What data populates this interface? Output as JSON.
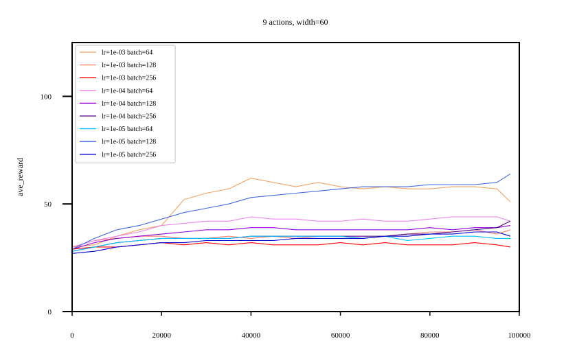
{
  "chart_data": {
    "type": "line",
    "title": "9 actions, width=60",
    "xlabel": "",
    "ylabel": "ave_reward",
    "xlim": [
      0,
      100000
    ],
    "ylim": [
      0,
      125
    ],
    "xticks": [
      0,
      20000,
      40000,
      60000,
      80000,
      100000
    ],
    "xtick_labels": [
      "0",
      "20000",
      "40000",
      "60000",
      "80000",
      "100000"
    ],
    "yticks": [
      0,
      50,
      100
    ],
    "ytick_labels": [
      "0",
      "50",
      "100"
    ],
    "grid": false,
    "legend_position": "top-left",
    "x": [
      0,
      5000,
      10000,
      15000,
      20000,
      25000,
      30000,
      35000,
      40000,
      45000,
      50000,
      55000,
      60000,
      65000,
      70000,
      75000,
      80000,
      85000,
      90000,
      95000,
      98000
    ],
    "series": [
      {
        "name": "lr=1e-03 batch=64",
        "color": "#f4a460",
        "values": [
          30,
          31,
          35,
          38,
          40,
          52,
          55,
          57,
          62,
          60,
          58,
          60,
          58,
          57,
          58,
          57,
          57,
          58,
          58,
          57,
          51
        ]
      },
      {
        "name": "lr=1e-03 batch=128",
        "color": "#fa8072",
        "values": [
          30,
          33,
          34,
          35,
          35,
          34,
          34,
          35,
          34,
          35,
          34,
          35,
          35,
          34,
          35,
          36,
          37,
          37,
          38,
          36,
          38
        ]
      },
      {
        "name": "lr=1e-03 batch=256",
        "color": "#ff0000",
        "values": [
          29,
          30,
          30,
          31,
          32,
          31,
          32,
          31,
          32,
          31,
          31,
          31,
          32,
          31,
          32,
          31,
          31,
          31,
          32,
          31,
          30
        ]
      },
      {
        "name": "lr=1e-04 batch=64",
        "color": "#ee82ee",
        "values": [
          30,
          33,
          35,
          37,
          40,
          41,
          42,
          42,
          44,
          43,
          43,
          42,
          42,
          43,
          42,
          42,
          43,
          44,
          44,
          44,
          42
        ]
      },
      {
        "name": "lr=1e-04 batch=128",
        "color": "#9400d3",
        "values": [
          29,
          32,
          34,
          35,
          36,
          37,
          38,
          38,
          39,
          39,
          38,
          38,
          38,
          38,
          38,
          38,
          39,
          38,
          39,
          39,
          40
        ]
      },
      {
        "name": "lr=1e-04 batch=256",
        "color": "#4b0082",
        "values": [
          28,
          30,
          32,
          33,
          34,
          34,
          34,
          34,
          35,
          35,
          35,
          35,
          35,
          35,
          35,
          36,
          36,
          37,
          38,
          39,
          42
        ]
      },
      {
        "name": "lr=1e-05 batch=64",
        "color": "#00bfff",
        "values": [
          28,
          30,
          32,
          33,
          34,
          34,
          34,
          34,
          35,
          35,
          35,
          35,
          35,
          34,
          35,
          33,
          34,
          35,
          35,
          34,
          34
        ]
      },
      {
        "name": "lr=1e-05 batch=128",
        "color": "#4169e1",
        "values": [
          29,
          34,
          38,
          40,
          43,
          46,
          48,
          50,
          53,
          54,
          55,
          56,
          57,
          58,
          58,
          58,
          59,
          59,
          59,
          60,
          64
        ]
      },
      {
        "name": "lr=1e-05 batch=256",
        "color": "#0000cd",
        "values": [
          27,
          28,
          30,
          31,
          32,
          32,
          33,
          33,
          33,
          33,
          34,
          34,
          34,
          34,
          35,
          35,
          36,
          36,
          37,
          37,
          35
        ]
      }
    ]
  }
}
